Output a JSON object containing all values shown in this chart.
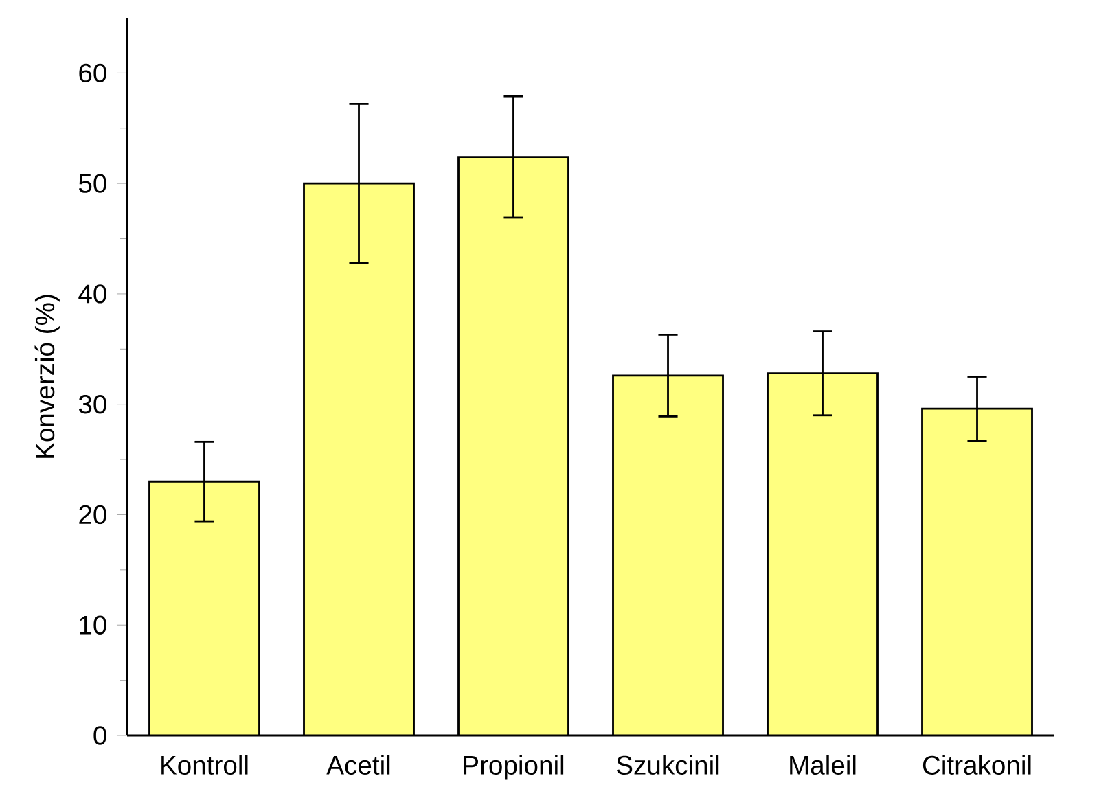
{
  "chart_data": {
    "type": "bar",
    "ylabel": "Konverzió (%)",
    "categories": [
      "Kontroll",
      "Acetil",
      "Propionil",
      "Szukcinil",
      "Maleil",
      "Citrakonil"
    ],
    "values": [
      23.0,
      50.0,
      52.4,
      32.6,
      32.8,
      29.6
    ],
    "errors": [
      3.6,
      7.2,
      5.5,
      3.7,
      3.8,
      2.9
    ],
    "color": "#ffff80",
    "ylim": [
      0,
      65
    ],
    "yticks": [
      0,
      10,
      20,
      30,
      40,
      50,
      60
    ],
    "grid": false
  }
}
